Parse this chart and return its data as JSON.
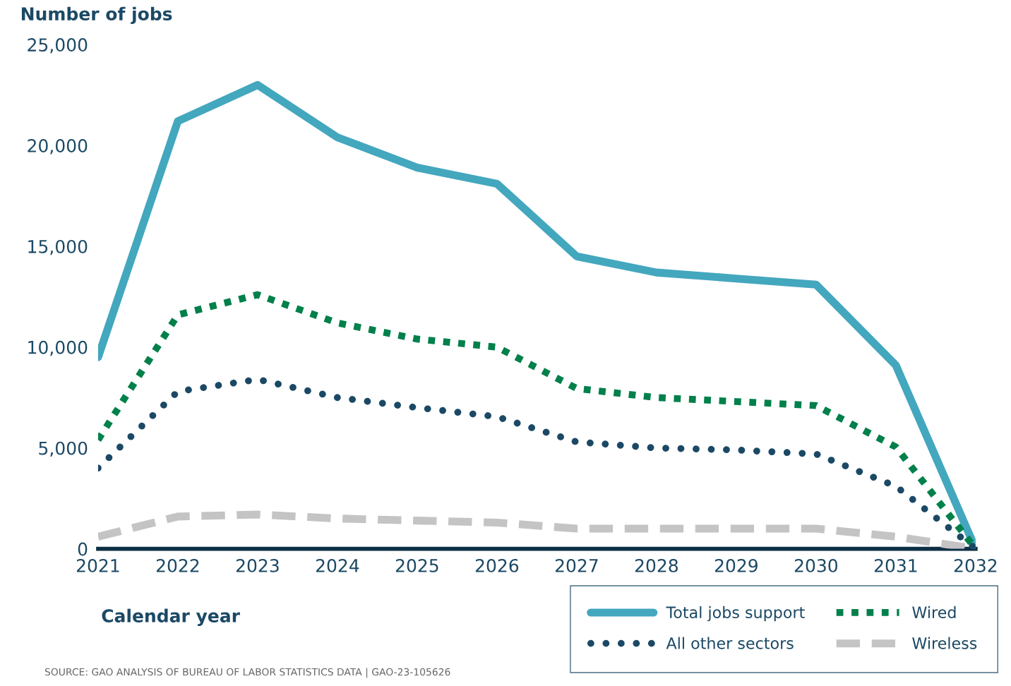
{
  "chart_data": {
    "type": "line",
    "ylabel": "Number of jobs",
    "xlabel": "Calendar year",
    "x": [
      2021,
      2022,
      2023,
      2024,
      2025,
      2026,
      2027,
      2028,
      2029,
      2030,
      2031,
      2032
    ],
    "series": [
      {
        "name": "Total jobs support",
        "color": "#43a7be",
        "line_style": "solid",
        "values": [
          9500,
          21200,
          23000,
          20400,
          18900,
          18100,
          14500,
          13700,
          13400,
          13100,
          9100,
          0
        ]
      },
      {
        "name": "All other sectors",
        "color": "#1b4965",
        "line_style": "dotted",
        "values": [
          4000,
          7800,
          8400,
          7500,
          7000,
          6550,
          5300,
          5000,
          4900,
          4700,
          3100,
          0
        ]
      },
      {
        "name": "Wired",
        "color": "#00804a",
        "line_style": "dotted",
        "values": [
          5400,
          11600,
          12600,
          11200,
          10400,
          10000,
          7950,
          7500,
          7300,
          7100,
          5050,
          0
        ]
      },
      {
        "name": "Wireless",
        "color": "#c4c4c4",
        "line_style": "dashed",
        "values": [
          600,
          1600,
          1700,
          1500,
          1400,
          1300,
          1000,
          1000,
          1000,
          1000,
          600,
          0
        ]
      }
    ],
    "xlim": [
      2021,
      2032
    ],
    "xticks": [
      2021,
      2022,
      2023,
      2024,
      2025,
      2026,
      2027,
      2028,
      2029,
      2030,
      2031,
      2032
    ],
    "ylim": [
      0,
      25000
    ],
    "yticks": [
      0,
      {
        "value": 5000,
        "label": "5,000"
      },
      {
        "value": 10000,
        "label": "10,000"
      },
      {
        "value": 15000,
        "label": "15,000"
      },
      {
        "value": 20000,
        "label": "20,000"
      },
      {
        "value": 25000,
        "label": "25,000"
      }
    ],
    "grid": false,
    "legend": "bottom right",
    "annotations": [
      "SOURCE: GAO ANALYSIS OF BUREAU OF LABOR STATISTICS DATA | GAO-23-105626"
    ]
  }
}
